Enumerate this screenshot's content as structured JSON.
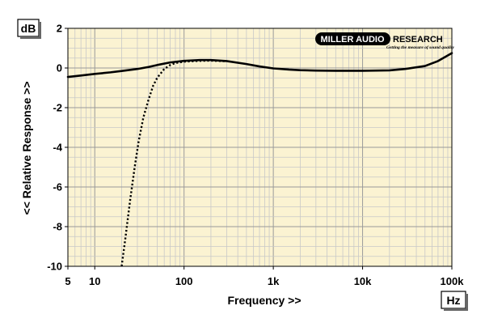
{
  "chart_data": {
    "type": "line",
    "xscale": "log",
    "xlim": [
      5,
      100000
    ],
    "ylim": [
      -10,
      2
    ],
    "ylabel": "<< Relative Response >>",
    "xlabel": "Frequency >>",
    "y_unit": "dB",
    "x_unit": "Hz",
    "xtick_labels": [
      {
        "value": 5,
        "label": "5"
      },
      {
        "value": 10,
        "label": "10"
      },
      {
        "value": 100,
        "label": "100"
      },
      {
        "value": 1000,
        "label": "1k"
      },
      {
        "value": 10000,
        "label": "10k"
      },
      {
        "value": 100000,
        "label": "100k"
      }
    ],
    "ytick_labels": [
      {
        "value": 2,
        "label": "2"
      },
      {
        "value": 0,
        "label": "0"
      },
      {
        "value": -2,
        "label": "-2"
      },
      {
        "value": -4,
        "label": "-4"
      },
      {
        "value": -6,
        "label": "-6"
      },
      {
        "value": -8,
        "label": "-8"
      },
      {
        "value": -10,
        "label": "-10"
      }
    ],
    "grid": true,
    "background_color": "#fbf3d2",
    "grid_color": "#c8c8c8",
    "series": [
      {
        "style": "solid",
        "color": "#000000",
        "points": [
          [
            5,
            -0.45
          ],
          [
            7,
            -0.38
          ],
          [
            10,
            -0.3
          ],
          [
            15,
            -0.22
          ],
          [
            20,
            -0.15
          ],
          [
            30,
            -0.05
          ],
          [
            40,
            0.05
          ],
          [
            50,
            0.15
          ],
          [
            70,
            0.28
          ],
          [
            100,
            0.36
          ],
          [
            150,
            0.4
          ],
          [
            200,
            0.4
          ],
          [
            300,
            0.35
          ],
          [
            500,
            0.2
          ],
          [
            700,
            0.08
          ],
          [
            1000,
            -0.02
          ],
          [
            1500,
            -0.08
          ],
          [
            2000,
            -0.11
          ],
          [
            3000,
            -0.13
          ],
          [
            5000,
            -0.14
          ],
          [
            10000,
            -0.14
          ],
          [
            20000,
            -0.12
          ],
          [
            30000,
            -0.05
          ],
          [
            50000,
            0.1
          ],
          [
            70000,
            0.35
          ],
          [
            100000,
            0.75
          ]
        ]
      },
      {
        "style": "dotted",
        "color": "#000000",
        "points": [
          [
            20,
            -10
          ],
          [
            22,
            -8.6
          ],
          [
            25,
            -6.6
          ],
          [
            28,
            -5.0
          ],
          [
            31,
            -3.7
          ],
          [
            35,
            -2.5
          ],
          [
            40,
            -1.6
          ],
          [
            45,
            -0.9
          ],
          [
            50,
            -0.5
          ],
          [
            60,
            -0.05
          ],
          [
            70,
            0.15
          ],
          [
            80,
            0.25
          ],
          [
            100,
            0.32
          ],
          [
            150,
            0.36
          ],
          [
            200,
            0.37
          ],
          [
            300,
            0.34
          ]
        ]
      }
    ]
  },
  "logo": {
    "text_left": "MILLER AUDIO",
    "text_right": "RESEARCH",
    "tagline": "Getting the measure of sound quality"
  }
}
